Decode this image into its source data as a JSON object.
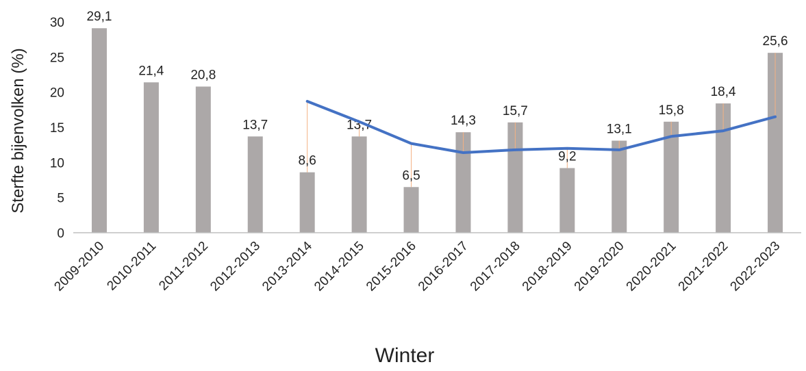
{
  "chart_data": {
    "type": "bar",
    "xlabel": "Winter",
    "ylabel": "Sterfte bijenvolken (%)",
    "ylim": [
      0,
      30
    ],
    "yticks": [
      0,
      5,
      10,
      15,
      20,
      25,
      30
    ],
    "grid": false,
    "categories": [
      "2009-2010",
      "2010-2011",
      "2011-2012",
      "2012-2013",
      "2013-2014",
      "2014-2015",
      "2015-2016",
      "2016-2017",
      "2017-2018",
      "2018-2019",
      "2019-2020",
      "2020-2021",
      "2021-2022",
      "2022-2023"
    ],
    "series": [
      {
        "type": "bar",
        "values": [
          29.1,
          21.4,
          20.8,
          13.7,
          8.6,
          13.7,
          6.5,
          14.3,
          15.7,
          9.2,
          13.1,
          15.8,
          18.4,
          25.6
        ],
        "labels": [
          "29,1",
          "21,4",
          "20,8",
          "13,7",
          "8,6",
          "13,7",
          "6,5",
          "14,3",
          "15,7",
          "9,2",
          "13,1",
          "15,8",
          "18,4",
          "25,6"
        ]
      },
      {
        "type": "line",
        "values": [
          null,
          null,
          null,
          null,
          18.7,
          15.8,
          12.7,
          11.4,
          11.8,
          12.0,
          11.8,
          13.7,
          14.5,
          16.5
        ]
      }
    ],
    "colors": {
      "bar": "#aca8a8",
      "line": "#4472c4",
      "axis": "#bfbfbf",
      "error": "#f4b183"
    }
  }
}
